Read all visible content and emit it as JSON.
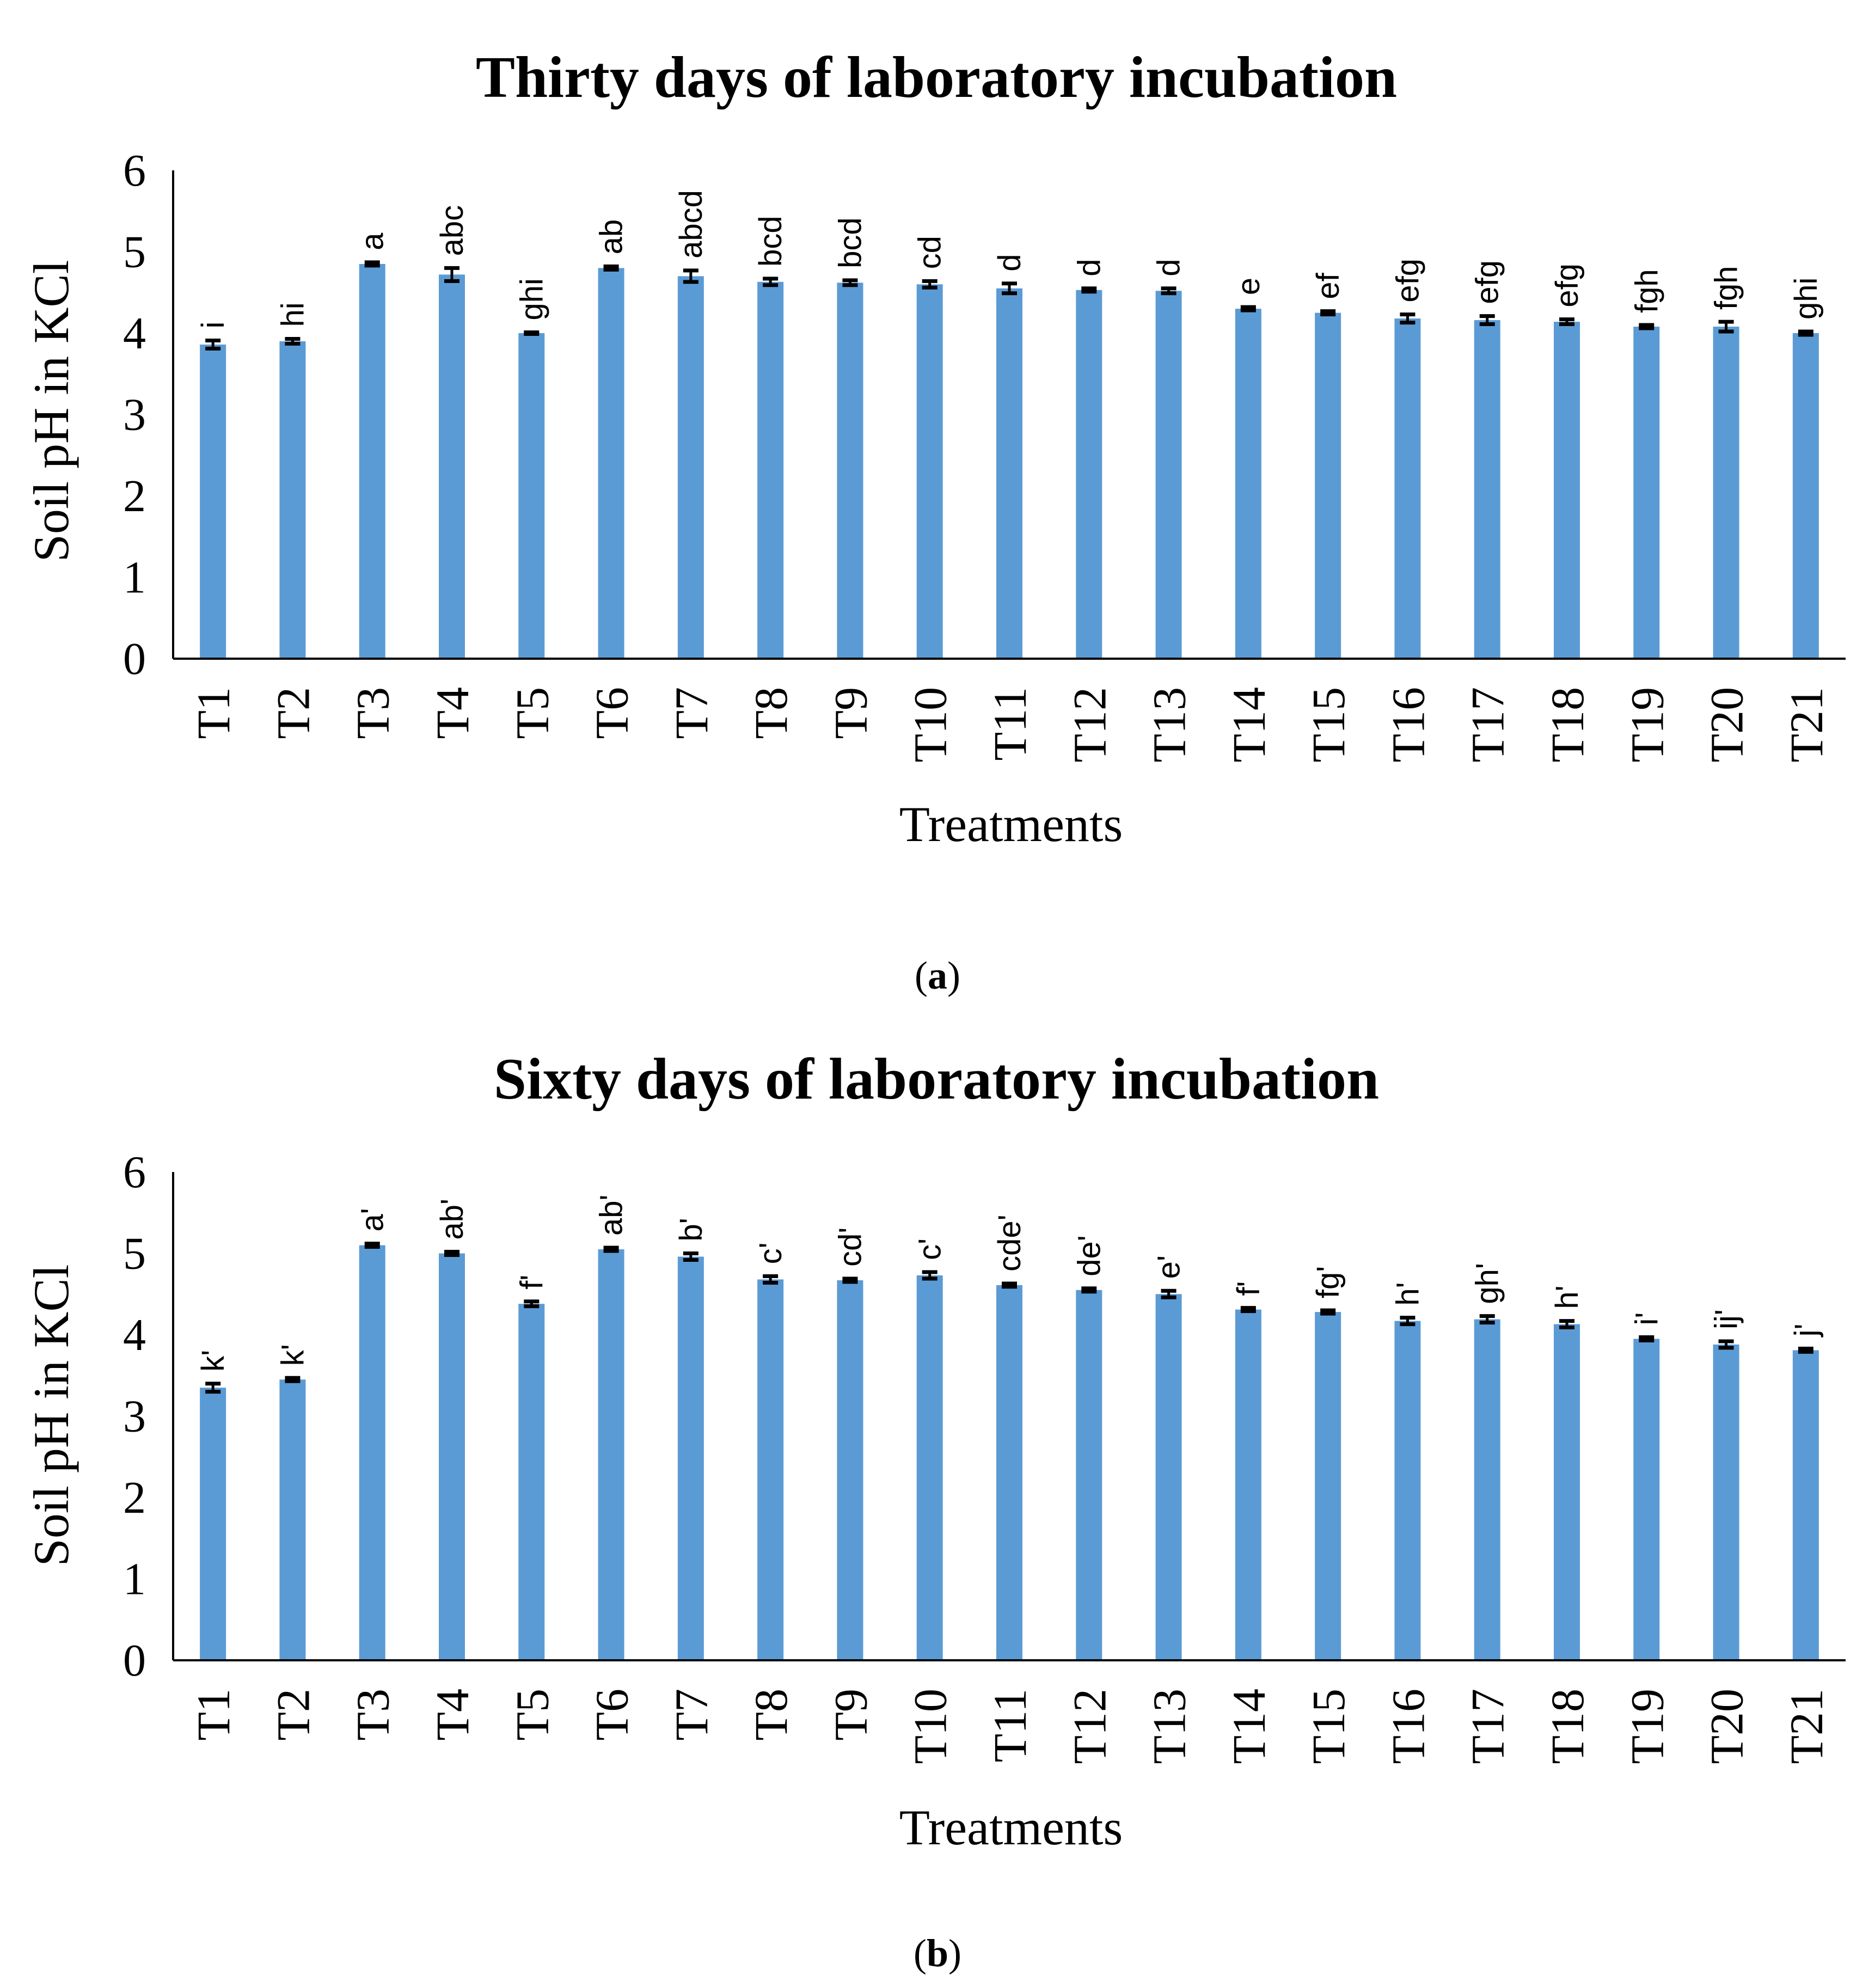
{
  "chart_data": [
    {
      "type": "bar",
      "panel_label": "a",
      "title": "Thirty days of laboratory incubation",
      "xlabel": "Treatments",
      "ylabel": "Soil pH in KCl",
      "ylim": [
        0,
        6
      ],
      "yticks": [
        "0",
        "1",
        "2",
        "3",
        "4",
        "5",
        "6"
      ],
      "color": "#5b9bd5",
      "categories": [
        "T1",
        "T2",
        "T3",
        "T4",
        "T5",
        "T6",
        "T7",
        "T8",
        "T9",
        "T10",
        "T11",
        "T12",
        "T13",
        "T14",
        "T15",
        "T16",
        "T17",
        "T18",
        "T19",
        "T20",
        "T21"
      ],
      "values": [
        3.86,
        3.9,
        4.85,
        4.72,
        4.0,
        4.8,
        4.7,
        4.63,
        4.62,
        4.6,
        4.55,
        4.53,
        4.52,
        4.3,
        4.25,
        4.18,
        4.16,
        4.14,
        4.08,
        4.08,
        4.0
      ],
      "errors": [
        0.05,
        0.03,
        0.02,
        0.08,
        0.01,
        0.02,
        0.07,
        0.04,
        0.03,
        0.04,
        0.06,
        0.02,
        0.03,
        0.02,
        0.02,
        0.05,
        0.05,
        0.03,
        0.02,
        0.06,
        0.02
      ],
      "annotations": [
        "i",
        "hi",
        "a",
        "abc",
        "ghi",
        "ab",
        "abcd",
        "bcd",
        "bcd",
        "cd",
        "d",
        "d",
        "d",
        "e",
        "ef",
        "efg",
        "efg",
        "efg",
        "fgh",
        "fgh",
        "ghi"
      ]
    },
    {
      "type": "bar",
      "panel_label": "b",
      "title": "Sixty days of laboratory incubation",
      "xlabel": "Treatments",
      "ylabel": "Soil pH in KCl",
      "ylim": [
        0,
        6
      ],
      "yticks": [
        "0",
        "1",
        "2",
        "3",
        "4",
        "5",
        "6"
      ],
      "color": "#5b9bd5",
      "categories": [
        "T1",
        "T2",
        "T3",
        "T4",
        "T5",
        "T6",
        "T7",
        "T8",
        "T9",
        "T10",
        "T11",
        "T12",
        "T13",
        "T14",
        "T15",
        "T16",
        "T17",
        "T18",
        "T19",
        "T20",
        "T21"
      ],
      "values": [
        3.35,
        3.45,
        5.1,
        5.0,
        4.38,
        5.05,
        4.96,
        4.68,
        4.67,
        4.73,
        4.61,
        4.55,
        4.5,
        4.31,
        4.28,
        4.17,
        4.19,
        4.13,
        3.95,
        3.88,
        3.81
      ],
      "errors": [
        0.05,
        0.02,
        0.02,
        0.02,
        0.03,
        0.02,
        0.04,
        0.04,
        0.02,
        0.04,
        0.02,
        0.02,
        0.04,
        0.02,
        0.02,
        0.04,
        0.04,
        0.04,
        0.02,
        0.04,
        0.02
      ],
      "annotations": [
        "k'",
        "k'",
        "a'",
        "ab'",
        "f'",
        "ab'",
        "b'",
        "c'",
        "cd'",
        "c'",
        "cde'",
        "de'",
        "e'",
        "f'",
        "fg'",
        "h'",
        "gh'",
        "h'",
        "i'",
        "ij'",
        "j'"
      ]
    }
  ]
}
